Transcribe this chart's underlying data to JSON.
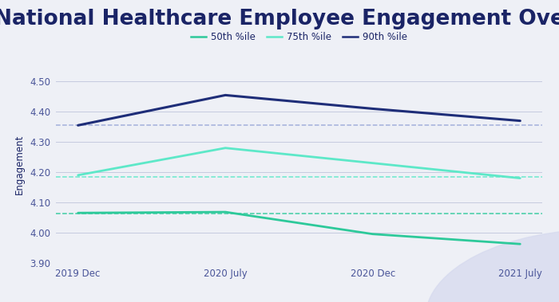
{
  "title": "National Healthcare Employee Engagement Overall",
  "ylabel": "Engagement",
  "x_labels": [
    "2019 Dec",
    "2020 July",
    "2020 Dec",
    "2021 July"
  ],
  "series": {
    "50th %ile": {
      "values": [
        4.065,
        4.068,
        3.995,
        3.962
      ],
      "color": "#2dc99a",
      "linewidth": 2.0
    },
    "75th %ile": {
      "values": [
        4.19,
        4.28,
        4.23,
        4.18
      ],
      "color": "#5de8c8",
      "linewidth": 2.0
    },
    "90th %ile": {
      "values": [
        4.355,
        4.455,
        4.41,
        4.37
      ],
      "color": "#1e2d78",
      "linewidth": 2.2
    }
  },
  "hlines": [
    {
      "y": 4.063,
      "color": "#2dc99a"
    },
    {
      "y": 4.185,
      "color": "#5de8c8"
    },
    {
      "y": 4.355,
      "color": "#9ba8d8"
    }
  ],
  "ylim": [
    3.9,
    4.55
  ],
  "yticks": [
    3.9,
    4.0,
    4.1,
    4.2,
    4.3,
    4.4,
    4.5
  ],
  "background_color": "#eef0f6",
  "plot_background": "#eef0f6",
  "grid_color": "#c5cadf",
  "title_color": "#1a2466",
  "tick_color": "#4a5599",
  "legend_colors": [
    "#2dc99a",
    "#5de8c8",
    "#1e2d78"
  ],
  "title_fontsize": 19,
  "legend_fontsize": 8.5,
  "ylabel_fontsize": 8.5,
  "tick_fontsize": 8.5,
  "deco_color": "#d5d9ee"
}
